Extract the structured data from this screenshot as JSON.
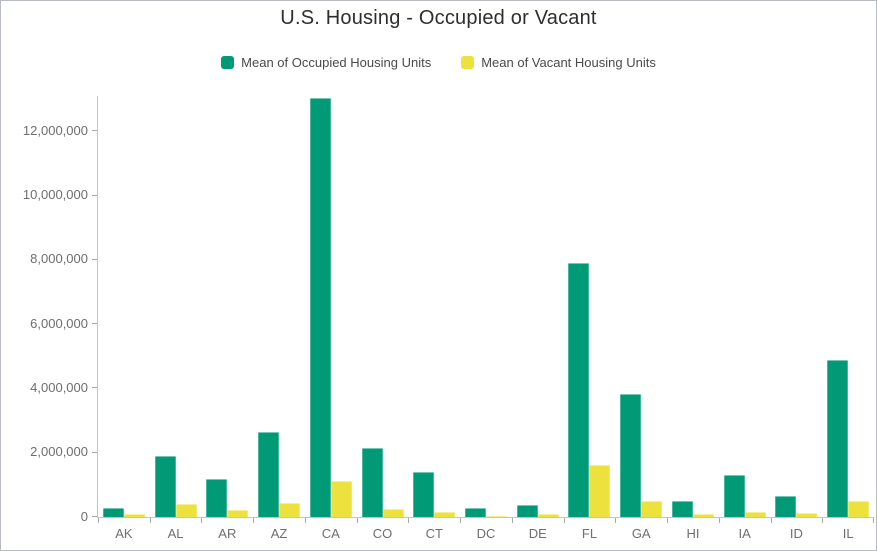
{
  "window": {
    "background_color": "#ffffff",
    "border_color": "#b8bcc0"
  },
  "chart_data": {
    "type": "bar",
    "title": "U.S. Housing - Occupied or Vacant",
    "categories": [
      "AK",
      "AL",
      "AR",
      "AZ",
      "CA",
      "CO",
      "CT",
      "DC",
      "DE",
      "FL",
      "GA",
      "HI",
      "IA",
      "ID",
      "IL"
    ],
    "series": [
      {
        "name": "Mean of Occupied Housing Units",
        "color": "#009b76",
        "values": [
          290000,
          1900000,
          1180000,
          2660000,
          13050000,
          2160000,
          1400000,
          290000,
          370000,
          7900000,
          3840000,
          490000,
          1300000,
          650000,
          4880000
        ]
      },
      {
        "name": "Mean of Vacant Housing Units",
        "color": "#ece13d",
        "values": [
          85000,
          410000,
          230000,
          425000,
          1130000,
          240000,
          170000,
          40000,
          90000,
          1630000,
          500000,
          100000,
          155000,
          115000,
          490000
        ]
      }
    ],
    "xlabel": "",
    "ylabel": "",
    "ylim": [
      0,
      13100000
    ],
    "yticks": [
      0,
      2000000,
      4000000,
      6000000,
      8000000,
      10000000,
      12000000
    ],
    "grid": false,
    "legend_position": "top",
    "axis_color": "#c3c3c3",
    "tick_color": "#a8a8a8",
    "tick_label_color": "#6e6e6e"
  }
}
